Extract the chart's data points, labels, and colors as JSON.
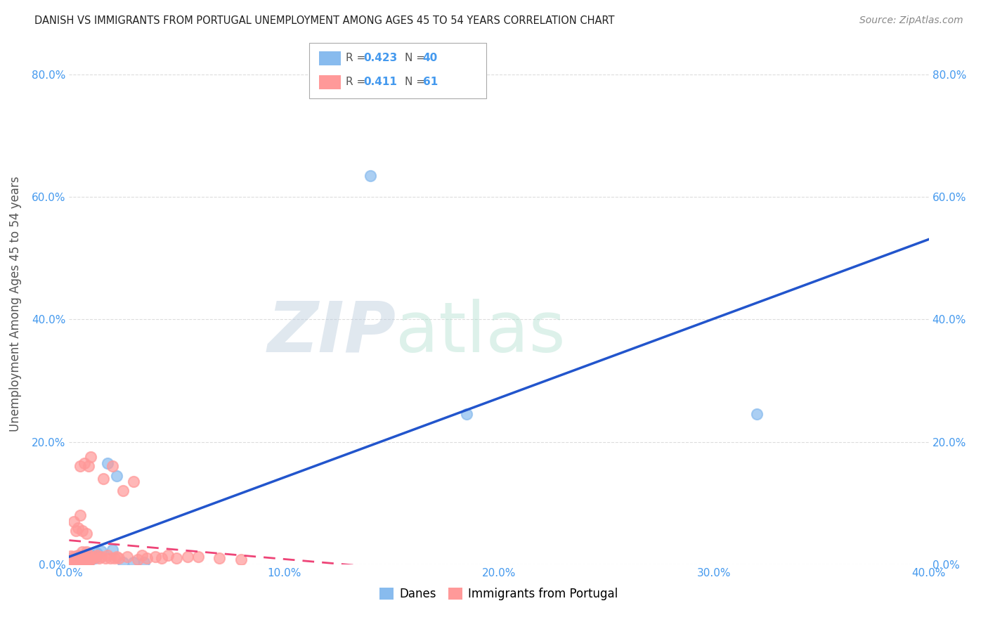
{
  "title": "DANISH VS IMMIGRANTS FROM PORTUGAL UNEMPLOYMENT AMONG AGES 45 TO 54 YEARS CORRELATION CHART",
  "source": "Source: ZipAtlas.com",
  "ylabel": "Unemployment Among Ages 45 to 54 years",
  "xlim": [
    0.0,
    0.4
  ],
  "ylim": [
    0.0,
    0.85
  ],
  "xticks": [
    0.0,
    0.1,
    0.2,
    0.3,
    0.4
  ],
  "yticks": [
    0.0,
    0.2,
    0.4,
    0.6,
    0.8
  ],
  "danes_color": "#88BBEE",
  "portugal_color": "#FF9999",
  "trend_danes_color": "#2255CC",
  "trend_portugal_color": "#EE4477",
  "legend_R_danes": "R = 0.423",
  "legend_N_danes": "N = 40",
  "legend_R_portugal": "R = 0.411",
  "legend_N_portugal": "N = 61",
  "danes_x": [
    0.001,
    0.001,
    0.001,
    0.002,
    0.002,
    0.002,
    0.003,
    0.003,
    0.003,
    0.003,
    0.004,
    0.004,
    0.004,
    0.005,
    0.005,
    0.005,
    0.005,
    0.006,
    0.006,
    0.006,
    0.007,
    0.007,
    0.008,
    0.008,
    0.009,
    0.009,
    0.01,
    0.01,
    0.012,
    0.013,
    0.015,
    0.018,
    0.02,
    0.022,
    0.025,
    0.03,
    0.035,
    0.14,
    0.185,
    0.32
  ],
  "danes_y": [
    0.005,
    0.007,
    0.01,
    0.005,
    0.008,
    0.01,
    0.005,
    0.007,
    0.01,
    0.012,
    0.005,
    0.008,
    0.012,
    0.003,
    0.006,
    0.008,
    0.013,
    0.004,
    0.007,
    0.01,
    0.005,
    0.012,
    0.006,
    0.015,
    0.005,
    0.014,
    0.008,
    0.016,
    0.01,
    0.018,
    0.022,
    0.165,
    0.024,
    0.145,
    0.003,
    0.003,
    0.003,
    0.635,
    0.245,
    0.245
  ],
  "portugal_x": [
    0.001,
    0.001,
    0.001,
    0.002,
    0.002,
    0.002,
    0.002,
    0.003,
    0.003,
    0.003,
    0.003,
    0.004,
    0.004,
    0.004,
    0.004,
    0.005,
    0.005,
    0.005,
    0.005,
    0.006,
    0.006,
    0.006,
    0.006,
    0.007,
    0.007,
    0.007,
    0.008,
    0.008,
    0.008,
    0.009,
    0.009,
    0.009,
    0.01,
    0.01,
    0.011,
    0.012,
    0.013,
    0.014,
    0.015,
    0.016,
    0.017,
    0.018,
    0.019,
    0.02,
    0.021,
    0.022,
    0.023,
    0.025,
    0.027,
    0.03,
    0.032,
    0.034,
    0.036,
    0.04,
    0.043,
    0.046,
    0.05,
    0.055,
    0.06,
    0.07,
    0.08
  ],
  "portugal_y": [
    0.005,
    0.008,
    0.013,
    0.005,
    0.008,
    0.012,
    0.07,
    0.005,
    0.008,
    0.013,
    0.055,
    0.006,
    0.01,
    0.015,
    0.06,
    0.006,
    0.01,
    0.08,
    0.16,
    0.005,
    0.01,
    0.02,
    0.055,
    0.006,
    0.013,
    0.165,
    0.008,
    0.02,
    0.05,
    0.006,
    0.013,
    0.16,
    0.008,
    0.175,
    0.01,
    0.012,
    0.015,
    0.01,
    0.012,
    0.14,
    0.01,
    0.015,
    0.01,
    0.16,
    0.01,
    0.012,
    0.01,
    0.12,
    0.012,
    0.135,
    0.008,
    0.015,
    0.01,
    0.012,
    0.01,
    0.015,
    0.01,
    0.012,
    0.012,
    0.01,
    0.008
  ],
  "watermark_zip": "ZIP",
  "watermark_atlas": "atlas",
  "background_color": "#FFFFFF",
  "grid_color": "#DDDDDD",
  "tick_label_color": "#4499EE"
}
